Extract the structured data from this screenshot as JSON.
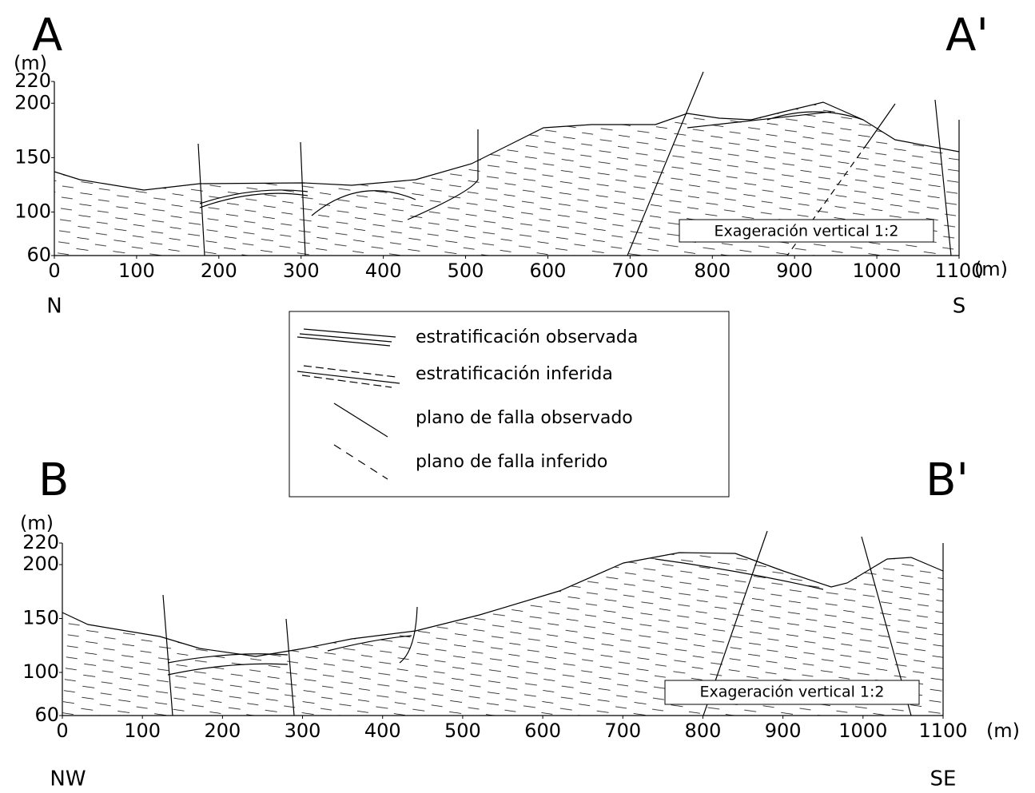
{
  "sections": [
    {
      "label_left": "A",
      "label_right": "A'",
      "y_unit": "(m)",
      "yticks": [
        60,
        100,
        150,
        200,
        220
      ],
      "xticks": [
        0,
        100,
        200,
        300,
        400,
        500,
        600,
        700,
        800,
        900,
        1000,
        1100
      ],
      "x_unit": "(m)",
      "dir_left": "N",
      "dir_right": "S",
      "note": "Exageración vertical 1:2"
    },
    {
      "label_left": "B",
      "label_right": "B'",
      "y_unit": "(m)",
      "yticks": [
        60,
        100,
        150,
        200,
        220
      ],
      "xticks": [
        0,
        100,
        200,
        300,
        400,
        500,
        600,
        700,
        800,
        900,
        1000,
        1100
      ],
      "x_unit": "(m)",
      "dir_left": "NW",
      "dir_right": "SE",
      "note": "Exageración vertical 1:2"
    }
  ],
  "legend": [
    "estratificación observada",
    "estratificación inferida",
    "plano de falla observado",
    "plano de falla inferido"
  ]
}
